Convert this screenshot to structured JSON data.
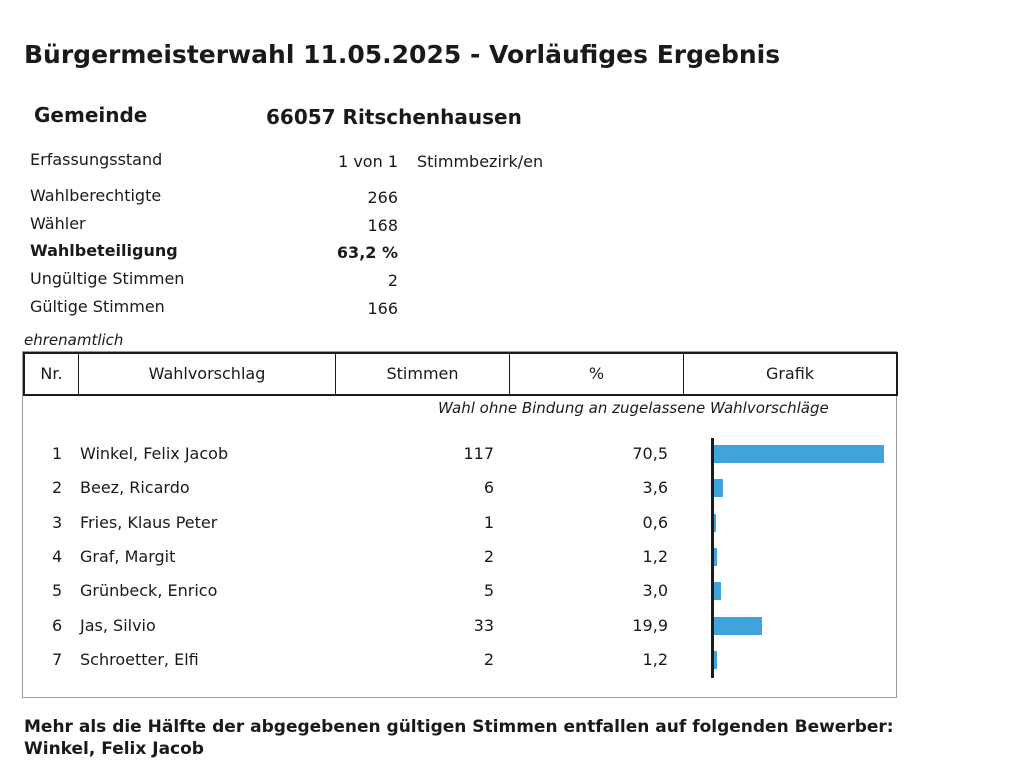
{
  "title": "Bürgermeisterwahl 11.05.2025 - Vorläufiges Ergebnis",
  "gemeinde": {
    "label": "Gemeinde",
    "value": "66057  Ritschenhausen"
  },
  "erfassung": {
    "label": "Erfassungsstand",
    "value": "1 von 1",
    "unit": "Stimmbezirk/en"
  },
  "stats": [
    {
      "label": "Wahlberechtigte",
      "value": "266",
      "bold": false
    },
    {
      "label": "Wähler",
      "value": "168",
      "bold": false
    },
    {
      "label": "Wahlbeteiligung",
      "value": "63,2 %",
      "bold": true
    },
    {
      "label": "Ungültige Stimmen",
      "value": "2",
      "bold": false
    },
    {
      "label": "Gültige Stimmen",
      "value": "166",
      "bold": false
    }
  ],
  "section_label": "ehrenamtlich",
  "table": {
    "headers": [
      "Nr.",
      "Wahlvorschlag",
      "Stimmen",
      "%",
      "Grafik"
    ],
    "subtitle": "Wahl ohne Bindung an zugelassene Wahlvorschläge",
    "bar_color": "#3fa4dd",
    "rows": [
      {
        "nr": "1",
        "name": "Winkel, Felix Jacob",
        "votes": "117",
        "pct": "70,5",
        "pct_value": 70.5
      },
      {
        "nr": "2",
        "name": "Beez, Ricardo",
        "votes": "6",
        "pct": "3,6",
        "pct_value": 3.6
      },
      {
        "nr": "3",
        "name": "Fries, Klaus Peter",
        "votes": "1",
        "pct": "0,6",
        "pct_value": 0.6
      },
      {
        "nr": "4",
        "name": "Graf, Margit",
        "votes": "2",
        "pct": "1,2",
        "pct_value": 1.2
      },
      {
        "nr": "5",
        "name": "Grünbeck, Enrico",
        "votes": "5",
        "pct": "3,0",
        "pct_value": 3.0
      },
      {
        "nr": "6",
        "name": "Jas, Silvio",
        "votes": "33",
        "pct": "19,9",
        "pct_value": 19.9
      },
      {
        "nr": "7",
        "name": "Schroetter, Elfi",
        "votes": "2",
        "pct": "1,2",
        "pct_value": 1.2
      }
    ]
  },
  "footer": {
    "line1": "Mehr als die Hälfte der abgegebenen gültigen Stimmen entfallen auf folgenden Bewerber:",
    "line2": "Winkel, Felix Jacob"
  }
}
